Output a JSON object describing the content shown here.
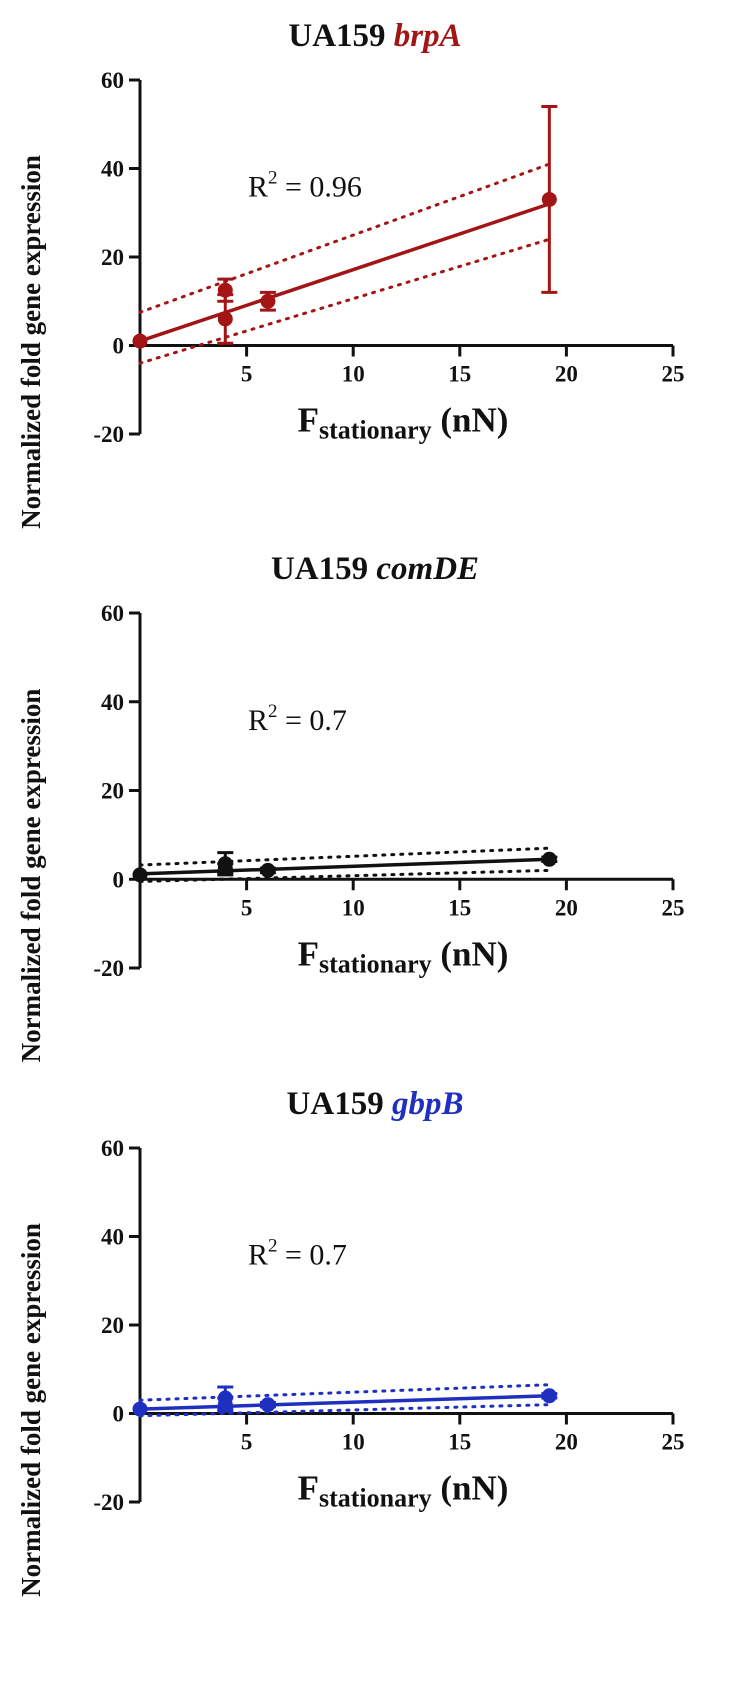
{
  "chart_data": [
    {
      "type": "scatter",
      "title_prefix": "UA159",
      "title_gene": "brpA",
      "color": "#a31515",
      "ylabel": "Normalized fold gene expression",
      "xlabel_main": "F",
      "xlabel_sub": "stationary",
      "xlabel_unit": "(nN)",
      "xlim": [
        0,
        25
      ],
      "ylim": [
        -20,
        60
      ],
      "x_ticks": [
        5,
        10,
        15,
        20,
        25
      ],
      "y_ticks": [
        -20,
        0,
        20,
        40,
        60
      ],
      "annotation": {
        "text": "R",
        "sup": "2",
        "rest": " = 0.96"
      },
      "points": [
        {
          "x": 0,
          "y": 1,
          "err": 0
        },
        {
          "x": 4,
          "y": 12.5,
          "err": 2.5
        },
        {
          "x": 4,
          "y": 6,
          "err": 5.5
        },
        {
          "x": 6,
          "y": 10,
          "err": 2
        },
        {
          "x": 19.2,
          "y": 33,
          "err": 21
        }
      ],
      "fit": {
        "x": [
          0,
          19.2
        ],
        "y": [
          1,
          32
        ]
      },
      "ci_upper": {
        "x": [
          0,
          19.2
        ],
        "y": [
          7.5,
          41
        ]
      },
      "ci_lower": {
        "x": [
          0,
          19.2
        ],
        "y": [
          -4,
          24
        ]
      }
    },
    {
      "type": "scatter",
      "title_prefix": "UA159",
      "title_gene": "comDE",
      "color": "#111111",
      "ylabel": "Normalized fold gene expression",
      "xlabel_main": "F",
      "xlabel_sub": "stationary",
      "xlabel_unit": "(nN)",
      "xlim": [
        0,
        25
      ],
      "ylim": [
        -20,
        60
      ],
      "x_ticks": [
        5,
        10,
        15,
        20,
        25
      ],
      "y_ticks": [
        -20,
        0,
        20,
        40,
        60
      ],
      "annotation": {
        "text": "R",
        "sup": "2",
        "rest": " = 0.7"
      },
      "points": [
        {
          "x": 0,
          "y": 1,
          "err": 0
        },
        {
          "x": 4,
          "y": 3.5,
          "err": 2.5
        },
        {
          "x": 4,
          "y": 2.5,
          "err": 1
        },
        {
          "x": 6,
          "y": 2,
          "err": 0.5
        },
        {
          "x": 19.2,
          "y": 4.5,
          "err": 0.5
        }
      ],
      "fit": {
        "x": [
          0,
          19.2
        ],
        "y": [
          1.2,
          4.5
        ]
      },
      "ci_upper": {
        "x": [
          0,
          19.2
        ],
        "y": [
          3.2,
          7
        ]
      },
      "ci_lower": {
        "x": [
          0,
          19.2
        ],
        "y": [
          -0.5,
          2
        ]
      }
    },
    {
      "type": "scatter",
      "title_prefix": "UA159",
      "title_gene": "gbpB",
      "color": "#1f2fbf",
      "ylabel": "Normalized fold gene expression",
      "xlabel_main": "F",
      "xlabel_sub": "stationary",
      "xlabel_unit": "(nN)",
      "xlim": [
        0,
        25
      ],
      "ylim": [
        -20,
        60
      ],
      "x_ticks": [
        5,
        10,
        15,
        20,
        25
      ],
      "y_ticks": [
        -20,
        0,
        20,
        40,
        60
      ],
      "annotation": {
        "text": "R",
        "sup": "2",
        "rest": " = 0.7"
      },
      "points": [
        {
          "x": 0,
          "y": 1,
          "err": 0
        },
        {
          "x": 4,
          "y": 3.5,
          "err": 2.5
        },
        {
          "x": 4,
          "y": 2,
          "err": 1.5
        },
        {
          "x": 6,
          "y": 2,
          "err": 0.5
        },
        {
          "x": 19.2,
          "y": 4,
          "err": 0.5
        }
      ],
      "fit": {
        "x": [
          0,
          19.2
        ],
        "y": [
          1,
          4
        ]
      },
      "ci_upper": {
        "x": [
          0,
          19.2
        ],
        "y": [
          3,
          6.5
        ]
      },
      "ci_lower": {
        "x": [
          0,
          19.2
        ],
        "y": [
          -0.5,
          2
        ]
      }
    }
  ]
}
